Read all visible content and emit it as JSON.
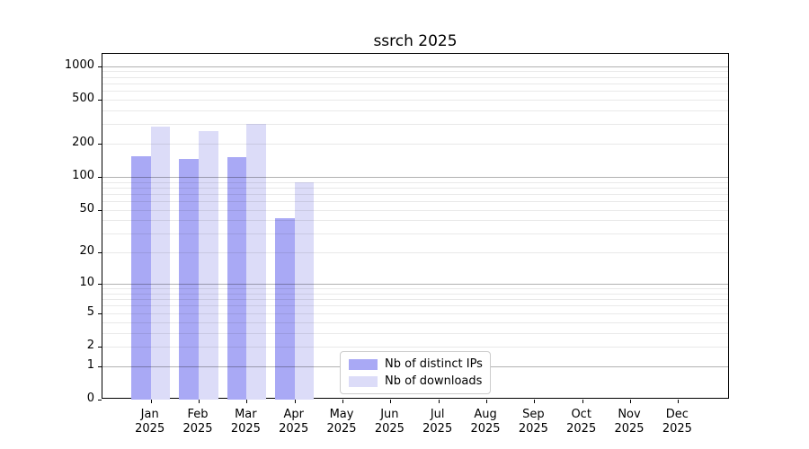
{
  "title": "ssrch 2025",
  "chart_data": {
    "type": "bar",
    "title": "ssrch 2025",
    "xlabel": "",
    "ylabel": "",
    "y_scale": "log10(1+x)",
    "ylim": [
      0,
      1292
    ],
    "grid": "horizontal, minor and major",
    "legend_position": "lower center, inside axes",
    "categories": [
      "Jan 2025",
      "Feb 2025",
      "Mar 2025",
      "Apr 2025",
      "May 2025",
      "Jun 2025",
      "Jul 2025",
      "Aug 2025",
      "Sep 2025",
      "Oct 2025",
      "Nov 2025",
      "Dec 2025"
    ],
    "y_ticks": [
      0,
      1,
      2,
      5,
      10,
      20,
      50,
      100,
      200,
      500,
      1000
    ],
    "y_tick_labels": [
      "0",
      "1",
      "2",
      "5",
      "10",
      "20",
      "50",
      "100",
      "200",
      "500",
      "1000"
    ],
    "major_gridline_values": [
      1,
      10,
      100,
      1000
    ],
    "series": [
      {
        "name": "Nb of distinct IPs",
        "color": "#a9a9f5",
        "values": [
          155,
          145,
          150,
          42,
          0,
          0,
          0,
          0,
          0,
          0,
          0,
          0
        ]
      },
      {
        "name": "Nb of downloads",
        "color": "#dcdcf8",
        "values": [
          285,
          260,
          300,
          90,
          0,
          0,
          0,
          0,
          0,
          0,
          0,
          0
        ]
      }
    ],
    "colors": {
      "background": "#ffffff",
      "spine": "#000000",
      "major_grid": "#b3b3b3",
      "minor_grid": "#eaeaea",
      "text": "#000000",
      "legend_border": "#cccccc"
    }
  }
}
